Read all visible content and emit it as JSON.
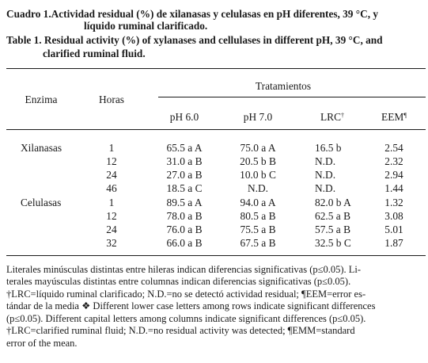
{
  "caption": {
    "es_line1": "Cuadro 1.Actividad residual (%) de xilanasas y celulasas en pH diferentes, 39 °C, y",
    "es_line2": "líquido ruminal clarificado.",
    "en_line1": "Table 1. Residual activity (%) of xylanases and cellulases in different pH, 39 °C, and",
    "en_line2": "clarified ruminal fluid."
  },
  "table": {
    "group_header": "Tratamientos",
    "col_enzyme": "Enzima",
    "col_hours": "Horas",
    "col_ph6": "pH 6.0",
    "col_ph7": "pH 7.0",
    "col_lrc": "LRC",
    "col_lrc_mark": "†",
    "col_eem": "EEM",
    "col_eem_mark": "¶",
    "groups": [
      {
        "enzyme": "Xilanasas",
        "rows": [
          {
            "hours": "1",
            "ph6": "65.5 a A",
            "ph7": "75.0 a A",
            "lrc": "16.5 b",
            "eem": "2.54"
          },
          {
            "hours": "12",
            "ph6": "31.0 a B",
            "ph7": "20.5 b B",
            "lrc": "N.D.",
            "eem": "2.32"
          },
          {
            "hours": "24",
            "ph6": "27.0 a B",
            "ph7": "10.0 b C",
            "lrc": "N.D.",
            "eem": "2.94"
          },
          {
            "hours": "46",
            "ph6": "18.5 a C",
            "ph7": "N.D.",
            "lrc": "N.D.",
            "eem": "1.44"
          }
        ]
      },
      {
        "enzyme": "Celulasas",
        "rows": [
          {
            "hours": "1",
            "ph6": "89.5 a A",
            "ph7": "94.0 a A",
            "lrc": "82.0 b A",
            "eem": "1.32"
          },
          {
            "hours": "12",
            "ph6": "78.0 a B",
            "ph7": "80.5 a B",
            "lrc": "62.5 a B",
            "eem": "3.08"
          },
          {
            "hours": "24",
            "ph6": "76.0 a B",
            "ph7": "75.5 a B",
            "lrc": "57.5 a B",
            "eem": "5.01"
          },
          {
            "hours": "32",
            "ph6": "66.0 a B",
            "ph7": "67.5 a B",
            "lrc": "32.5 b C",
            "eem": "1.87"
          }
        ]
      }
    ]
  },
  "notes": {
    "line1": "Literales minúsculas distintas entre hileras indican diferencias significativas (p≤0.05). Li-",
    "line2": "terales mayúsculas distintas entre columnas indican diferencias significativas (p≤0.05).",
    "line3": "†LRC=líquido ruminal clarificado; N.D.=no se detectó actividad residual; ¶EEM=error es-",
    "line4": "tándar de la media ❖ Different lower case letters among rows indicate significant differences",
    "line5": "(p≤0.05). Different capital letters among columns indicate significant differences (p≤0.05).",
    "line6": "†LRC=clarified ruminal fluid; N.D.=no residual activity was detected; ¶EMM=standard",
    "line7": "error of the mean."
  }
}
